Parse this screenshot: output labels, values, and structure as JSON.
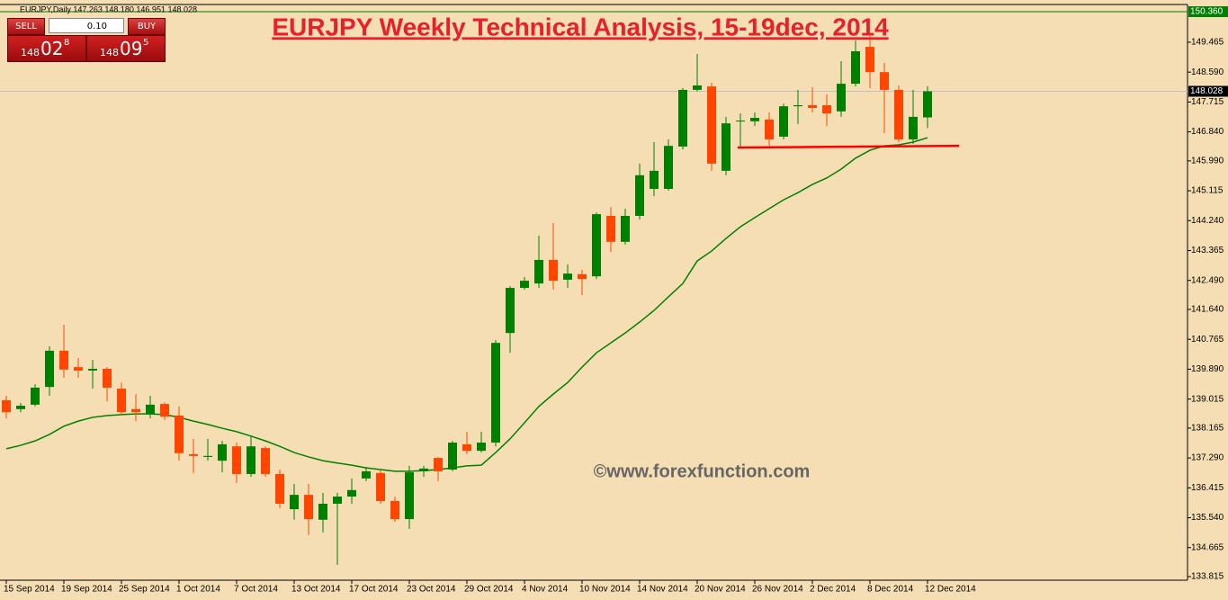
{
  "header": "EURJPY,Daily  147.263 148.180 146.951 148.028",
  "trade_panel": {
    "sell": "SELL",
    "lot": "0.10",
    "buy": "BUY",
    "bid_big": "148",
    "bid_pips": "02",
    "bid_frac": "8",
    "ask_big": "148",
    "ask_pips": "09",
    "ask_frac": "5"
  },
  "chart_data": {
    "type": "candlestick",
    "title": "EURJPY Weekly Technical Analysis, 15-19dec, 2014",
    "watermark": "©www.forexfunction.com",
    "categories": [
      "15 Sep 2014",
      null,
      null,
      null,
      "19 Sep 2014",
      null,
      null,
      null,
      "25 Sep 2014",
      null,
      null,
      null,
      "1 Oct 2014",
      null,
      null,
      null,
      "7 Oct 2014",
      null,
      null,
      null,
      "13 Oct 2014",
      null,
      null,
      null,
      "17 Oct 2014",
      null,
      null,
      null,
      "23 Oct 2014",
      null,
      null,
      null,
      "29 Oct 2014",
      null,
      null,
      null,
      "4 Nov 2014",
      null,
      null,
      null,
      "10 Nov 2014",
      null,
      null,
      null,
      "14 Nov 2014",
      null,
      null,
      null,
      "20 Nov 2014",
      null,
      null,
      null,
      "26 Nov 2014",
      null,
      null,
      null,
      "2 Dec 2014",
      null,
      null,
      null,
      "8 Dec 2014",
      null,
      null,
      null,
      "12 Dec 2014"
    ],
    "open": [
      138.98,
      138.72,
      138.85,
      139.37,
      140.43,
      139.95,
      139.85,
      139.9,
      139.32,
      138.72,
      138.58,
      138.87,
      138.53,
      137.4,
      137.32,
      137.21,
      137.63,
      136.82,
      137.58,
      136.82,
      135.79,
      136.21,
      135.48,
      135.95,
      136.16,
      136.69,
      136.85,
      136.03,
      135.5,
      136.9,
      137.29,
      136.95,
      137.69,
      137.5,
      137.74,
      140.95,
      142.27,
      142.4,
      143.09,
      142.51,
      142.67,
      142.61,
      144.38,
      143.62,
      144.38,
      145.17,
      145.17,
      146.41,
      148.07,
      148.17,
      145.7,
      147.15,
      147.15,
      147.2,
      146.7,
      147.59,
      147.62,
      147.62,
      147.44,
      148.25,
      149.33,
      148.59,
      148.07,
      146.62,
      147.263
    ],
    "high": [
      139.11,
      138.9,
      139.45,
      140.56,
      141.19,
      140.22,
      140.16,
      139.95,
      139.5,
      139.16,
      139.11,
      138.92,
      138.8,
      137.85,
      137.85,
      137.79,
      137.74,
      137.95,
      137.63,
      136.95,
      136.53,
      136.53,
      136.27,
      136.27,
      136.69,
      137.03,
      136.95,
      136.16,
      137.06,
      137.06,
      137.32,
      137.79,
      138.06,
      138.06,
      140.74,
      142.32,
      142.59,
      143.8,
      144.17,
      142.96,
      142.8,
      144.48,
      144.64,
      144.59,
      145.91,
      146.54,
      146.62,
      148.12,
      149.12,
      148.28,
      147.28,
      147.38,
      147.41,
      147.41,
      147.67,
      148.07,
      148.15,
      147.94,
      148.91,
      149.52,
      149.65,
      148.86,
      148.2,
      148.07,
      148.18
    ],
    "low": [
      138.45,
      138.63,
      138.8,
      139.11,
      139.64,
      139.64,
      139.32,
      138.95,
      138.53,
      138.37,
      138.45,
      138.4,
      137.21,
      136.85,
      137.21,
      136.87,
      136.56,
      136.74,
      136.74,
      135.82,
      135.48,
      135.03,
      135.11,
      134.16,
      135.95,
      136.61,
      135.95,
      135.42,
      135.21,
      136.74,
      136.61,
      136.9,
      137.4,
      137.45,
      137.63,
      140.37,
      142.22,
      142.27,
      142.22,
      142.27,
      142.06,
      142.53,
      143.32,
      143.54,
      144.27,
      144.96,
      145.12,
      146.33,
      148.02,
      145.7,
      145.57,
      146.41,
      147.01,
      146.43,
      146.62,
      147.07,
      147.41,
      147.01,
      147.28,
      148.17,
      148.12,
      146.8,
      146.54,
      146.49,
      146.951
    ],
    "close": [
      138.63,
      138.82,
      139.35,
      140.43,
      139.88,
      139.85,
      139.9,
      139.35,
      138.63,
      138.63,
      138.85,
      138.5,
      137.43,
      137.35,
      137.35,
      137.69,
      136.82,
      137.63,
      136.82,
      135.95,
      136.21,
      135.5,
      135.95,
      136.16,
      136.35,
      136.9,
      136.03,
      135.5,
      136.87,
      136.98,
      136.9,
      137.74,
      137.5,
      137.74,
      140.66,
      142.27,
      142.48,
      143.09,
      142.48,
      142.69,
      142.53,
      144.43,
      143.62,
      144.38,
      145.57,
      145.7,
      146.43,
      148.07,
      148.2,
      145.91,
      147.09,
      147.17,
      147.25,
      146.62,
      147.59,
      147.62,
      147.54,
      147.38,
      148.25,
      149.2,
      148.59,
      148.07,
      146.62,
      147.28,
      148.028
    ],
    "up_color": "#008000",
    "down_color": "#ff4500",
    "moving_average": {
      "color": "#008000",
      "values": [
        137.56,
        137.66,
        137.79,
        137.98,
        138.22,
        138.37,
        138.48,
        138.53,
        138.56,
        138.58,
        138.58,
        138.56,
        138.48,
        138.37,
        138.27,
        138.16,
        138.06,
        137.93,
        137.79,
        137.63,
        137.45,
        137.32,
        137.21,
        137.14,
        137.08,
        137.0,
        136.95,
        136.9,
        136.9,
        136.92,
        136.95,
        137.0,
        137.06,
        137.08,
        137.45,
        137.85,
        138.32,
        138.8,
        139.16,
        139.5,
        139.95,
        140.37,
        140.66,
        140.95,
        141.27,
        141.61,
        142.01,
        142.4,
        143.06,
        143.35,
        143.72,
        144.06,
        144.33,
        144.59,
        144.85,
        145.06,
        145.3,
        145.49,
        145.75,
        146.07,
        146.3,
        146.43,
        146.46,
        146.54,
        146.67
      ]
    },
    "support_line": {
      "color": "#ff0000",
      "values": [
        146.38,
        146.43
      ]
    },
    "price_lines": [
      {
        "value": 150.36,
        "label": "150.360",
        "color": "#008000"
      },
      {
        "value": 148.028,
        "color": "#c0c0c0"
      }
    ],
    "ylim": [
      133.71,
      150.57
    ],
    "yticks": [
      133.815,
      134.665,
      {
        "value": 135.54,
        "label": "135.540"
      },
      136.415,
      {
        "value": 137.29,
        "label": "137.290"
      },
      138.165,
      139.015,
      {
        "value": 139.89,
        "label": "139.890"
      },
      140.765,
      {
        "value": 141.64,
        "label": "141.640"
      },
      {
        "value": 142.49,
        "label": "142.490"
      },
      143.365,
      {
        "value": 144.24,
        "label": "144.240"
      },
      145.115,
      {
        "value": 145.99,
        "label": "145.990"
      },
      {
        "value": 146.84,
        "label": "146.840"
      },
      147.715,
      {
        "value": 148.59,
        "label": "148.590"
      },
      149.465
    ],
    "grid": false
  }
}
